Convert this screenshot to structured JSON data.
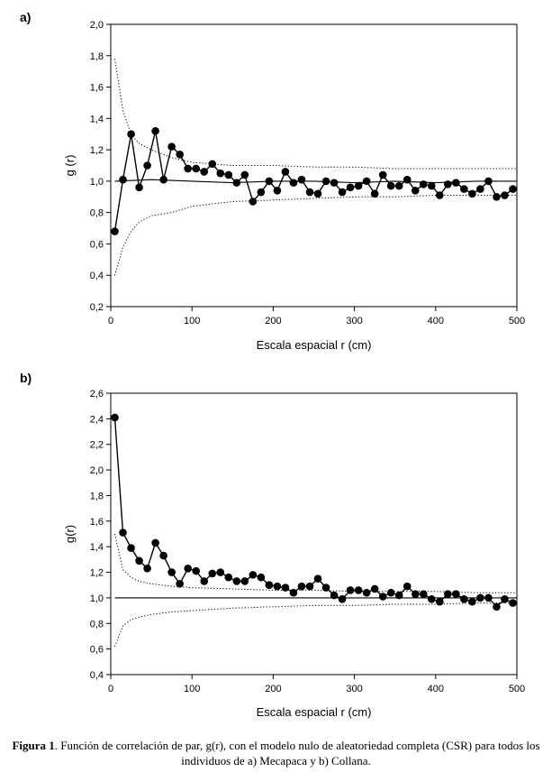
{
  "colors": {
    "line": "#000000",
    "marker": "#000000",
    "background": "#ffffff"
  },
  "chart_data": [
    {
      "panel": "a)",
      "type": "line",
      "xlabel": "Escala espacial r (cm)",
      "ylabel": "g (r)",
      "xlim": [
        0,
        500
      ],
      "ylim": [
        0.2,
        2.0
      ],
      "xticks": [
        "0",
        "100",
        "200",
        "300",
        "400",
        "500"
      ],
      "yticks": [
        "0,2",
        "0,4",
        "0,6",
        "0,8",
        "1,0",
        "1,2",
        "1,4",
        "1,6",
        "1,8",
        "2,0"
      ],
      "grid": false,
      "series": [
        {
          "role": "observed",
          "style": "line-with-filled-circles",
          "x": [
            5,
            15,
            25,
            35,
            45,
            55,
            65,
            75,
            85,
            95,
            105,
            115,
            125,
            135,
            145,
            155,
            165,
            175,
            185,
            195,
            205,
            215,
            225,
            235,
            245,
            255,
            265,
            275,
            285,
            295,
            305,
            315,
            325,
            335,
            345,
            355,
            365,
            375,
            385,
            395,
            405,
            415,
            425,
            435,
            445,
            455,
            465,
            475,
            485,
            495
          ],
          "y": [
            0.68,
            1.01,
            1.3,
            0.96,
            1.1,
            1.32,
            1.01,
            1.22,
            1.17,
            1.08,
            1.08,
            1.06,
            1.11,
            1.05,
            1.04,
            0.99,
            1.04,
            0.87,
            0.93,
            1.0,
            0.94,
            1.06,
            0.99,
            1.01,
            0.93,
            0.92,
            1.0,
            0.99,
            0.93,
            0.96,
            0.97,
            1.0,
            0.92,
            1.04,
            0.97,
            0.97,
            1.01,
            0.94,
            0.98,
            0.97,
            0.91,
            0.98,
            0.99,
            0.95,
            0.92,
            0.95,
            1.0,
            0.9,
            0.91,
            0.95
          ]
        },
        {
          "role": "csr-mean",
          "style": "solid-line",
          "x": [
            5,
            50,
            100,
            150,
            200,
            250,
            300,
            350,
            400,
            450,
            500
          ],
          "y": [
            1.0,
            1.01,
            1.0,
            0.99,
            1.0,
            1.0,
            0.99,
            1.0,
            0.99,
            1.0,
            1.0
          ]
        },
        {
          "role": "upper-envelope",
          "style": "dotted-line",
          "x": [
            5,
            15,
            25,
            35,
            50,
            75,
            100,
            150,
            200,
            250,
            300,
            350,
            400,
            450,
            500
          ],
          "y": [
            1.78,
            1.45,
            1.3,
            1.24,
            1.2,
            1.15,
            1.12,
            1.1,
            1.1,
            1.09,
            1.09,
            1.08,
            1.08,
            1.08,
            1.08
          ]
        },
        {
          "role": "lower-envelope",
          "style": "dotted-line",
          "x": [
            5,
            15,
            25,
            35,
            50,
            75,
            100,
            150,
            200,
            250,
            300,
            350,
            400,
            450,
            500
          ],
          "y": [
            0.4,
            0.58,
            0.68,
            0.74,
            0.78,
            0.8,
            0.84,
            0.87,
            0.88,
            0.89,
            0.9,
            0.9,
            0.91,
            0.91,
            0.91
          ]
        }
      ]
    },
    {
      "panel": "b)",
      "type": "line",
      "xlabel": "Escala espacial r (cm)",
      "ylabel": "g(r)",
      "xlim": [
        0,
        500
      ],
      "ylim": [
        0.4,
        2.6
      ],
      "xticks": [
        "0",
        "100",
        "200",
        "300",
        "400",
        "500"
      ],
      "yticks": [
        "0,4",
        "0,6",
        "0,8",
        "1,0",
        "1,2",
        "1,4",
        "1,6",
        "1,8",
        "2,0",
        "2,2",
        "2,4",
        "2,6"
      ],
      "grid": false,
      "series": [
        {
          "role": "observed",
          "style": "line-with-filled-circles",
          "x": [
            5,
            15,
            25,
            35,
            45,
            55,
            65,
            75,
            85,
            95,
            105,
            115,
            125,
            135,
            145,
            155,
            165,
            175,
            185,
            195,
            205,
            215,
            225,
            235,
            245,
            255,
            265,
            275,
            285,
            295,
            305,
            315,
            325,
            335,
            345,
            355,
            365,
            375,
            385,
            395,
            405,
            415,
            425,
            435,
            445,
            455,
            465,
            475,
            485,
            495
          ],
          "y": [
            2.41,
            1.51,
            1.39,
            1.29,
            1.23,
            1.43,
            1.33,
            1.2,
            1.11,
            1.23,
            1.21,
            1.13,
            1.19,
            1.2,
            1.16,
            1.13,
            1.13,
            1.18,
            1.16,
            1.1,
            1.09,
            1.08,
            1.04,
            1.09,
            1.09,
            1.15,
            1.08,
            1.02,
            0.99,
            1.06,
            1.06,
            1.04,
            1.07,
            1.01,
            1.04,
            1.02,
            1.09,
            1.03,
            1.03,
            0.99,
            0.97,
            1.03,
            1.03,
            0.99,
            0.97,
            1.0,
            1.0,
            0.93,
            0.99,
            0.96
          ]
        },
        {
          "role": "csr-mean",
          "style": "solid-line",
          "x": [
            5,
            50,
            100,
            150,
            200,
            250,
            300,
            350,
            400,
            450,
            500
          ],
          "y": [
            1.0,
            1.0,
            1.0,
            1.0,
            1.0,
            1.0,
            1.0,
            1.0,
            1.0,
            1.0,
            1.0
          ]
        },
        {
          "role": "upper-envelope",
          "style": "dotted-line",
          "x": [
            5,
            15,
            25,
            35,
            50,
            75,
            100,
            150,
            200,
            250,
            300,
            350,
            400,
            450,
            500
          ],
          "y": [
            1.5,
            1.22,
            1.16,
            1.13,
            1.11,
            1.09,
            1.08,
            1.07,
            1.06,
            1.06,
            1.05,
            1.05,
            1.05,
            1.04,
            1.04
          ]
        },
        {
          "role": "lower-envelope",
          "style": "dotted-line",
          "x": [
            5,
            15,
            25,
            35,
            50,
            75,
            100,
            150,
            200,
            250,
            300,
            350,
            400,
            450,
            500
          ],
          "y": [
            0.62,
            0.78,
            0.83,
            0.85,
            0.87,
            0.89,
            0.9,
            0.92,
            0.93,
            0.94,
            0.94,
            0.95,
            0.95,
            0.96,
            0.96
          ]
        }
      ]
    }
  ],
  "caption": {
    "bold": "Figura 1",
    "text": ". Función de correlación de par, g(r), con el modelo nulo de aleatoriedad completa (CSR) para todos los individuos de a) Mecapaca y b) Collana."
  }
}
